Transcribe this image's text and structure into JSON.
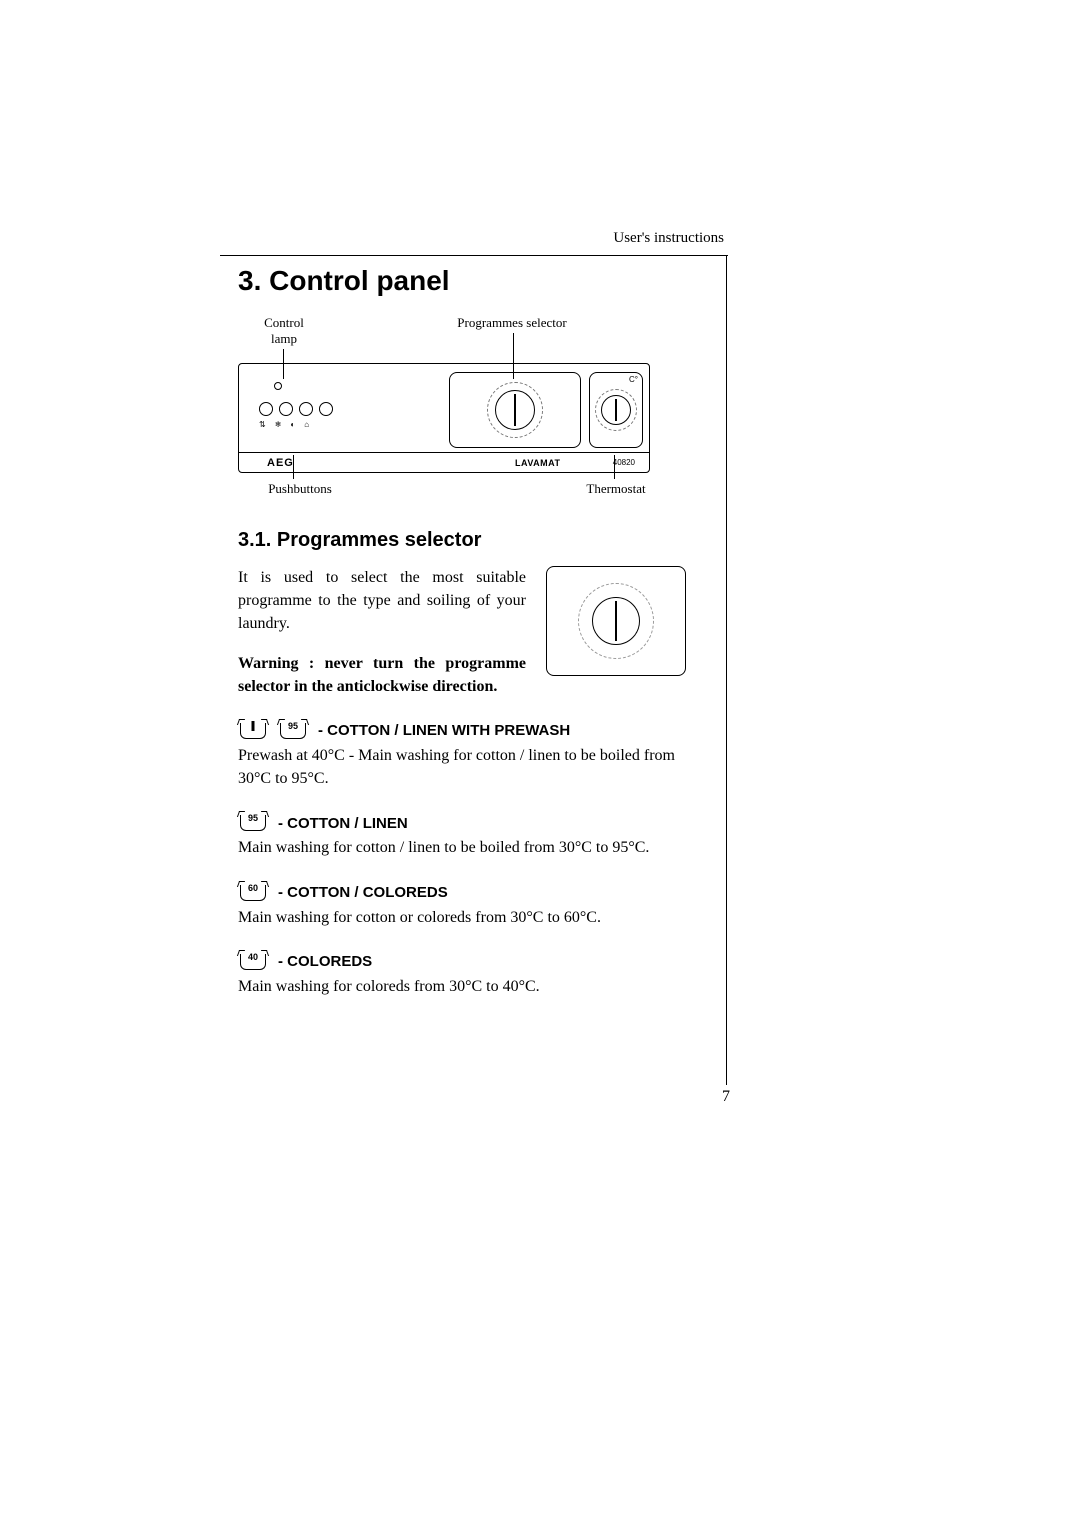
{
  "running_head": "User's instructions",
  "section_title": "3. Control panel",
  "panel": {
    "label_control_lamp": "Control\nlamp",
    "label_prog_selector": "Programmes selector",
    "label_pushbuttons": "Pushbuttons",
    "label_thermostat": "Thermostat",
    "brand_aeg": "AEG",
    "brand_lavamat": "LAVAMAT",
    "brand_model": "40820",
    "therm_c": "C°"
  },
  "subhead": "3.1. Programmes selector",
  "intro_para": "It is used to select the most suitable programme to the type and soiling of your laundry.",
  "intro_warning": "Warning : never turn the programme selector in the anticlockwise direction.",
  "programmes": [
    {
      "icons": [
        {
          "mark": "bar"
        },
        {
          "mark": "95"
        }
      ],
      "title": "- COTTON / LINEN WITH PREWASH",
      "body": "Prewash at 40°C - Main washing for cotton / linen to be boiled from 30°C to 95°C."
    },
    {
      "icons": [
        {
          "mark": "95"
        }
      ],
      "title": "- COTTON / LINEN",
      "body": "Main washing for cotton / linen to be boiled from 30°C to 95°C."
    },
    {
      "icons": [
        {
          "mark": "60"
        }
      ],
      "title": "- COTTON / COLOREDS",
      "body": "Main washing for cotton or coloreds from 30°C to 60°C."
    },
    {
      "icons": [
        {
          "mark": "40"
        }
      ],
      "title": "- COLOREDS",
      "body": "Main washing for coloreds from 30°C to 40°C."
    }
  ],
  "page_number": "7",
  "colors": {
    "text": "#000000",
    "background": "#ffffff",
    "tick": "#777777"
  }
}
